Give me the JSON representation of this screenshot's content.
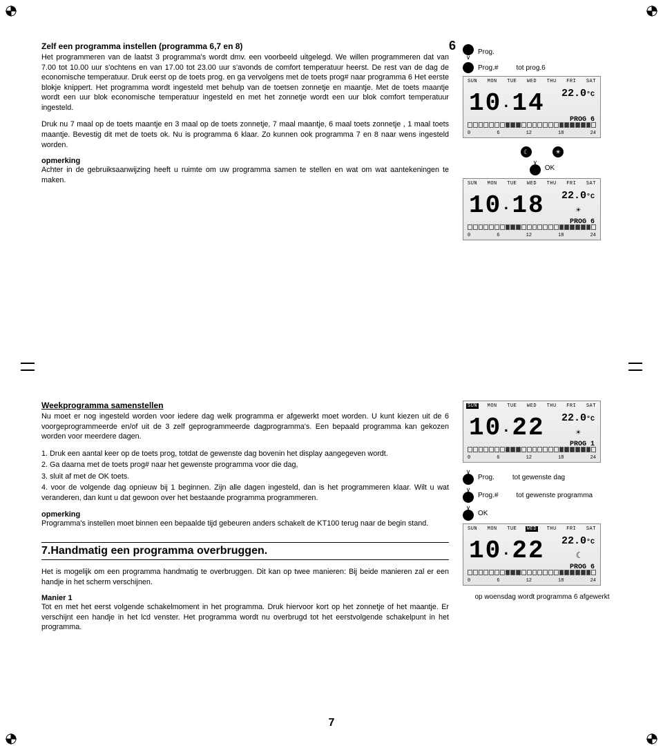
{
  "page_top_num": "6",
  "page_bottom_num": "7",
  "section_top": {
    "title": "Zelf een programma instellen (programma 6,7 en 8)",
    "body": "Het programmeren van de laatst 3 programma's wordt dmv. een voorbeeld uitgelegd. We willen programmeren dat van 7.00 tot 10.00 uur s'ochtens en van 17.00 tot 23.00 uur s'avonds de comfort temperatuur heerst. De rest van de dag de economische temperatuur. Druk eerst op de toets prog. en ga vervolgens met de toets prog# naar programma 6 Het eerste blokje knippert.\nHet programma wordt ingesteld met behulp van de toetsen zonnetje en maantje. Met de toets maantje wordt een uur blok economische temperatuur ingesteld en met het zonnetje wordt een uur blok comfort temperatuur ingesteld.",
    "body2": "Druk nu 7 maal op de toets maantje en 3 maal op de toets zonnetje, 7 maal maantje, 6 maal toets zonnetje , 1 maal toets maantje. Bevestig dit met de toets ok. Nu is programma 6 klaar. Zo kunnen ook programma 7 en 8 naar wens ingesteld worden.",
    "note_title": "opmerking",
    "note_body": "Achter in de gebruiksaanwijzing heeft u ruimte om uw programma samen te stellen en wat om wat aantekeningen te maken."
  },
  "right_top": {
    "btn1_label": "Prog.",
    "btn2_label": "Prog.#",
    "btn2_extra": "tot prog.6",
    "moon": "☾",
    "sun": "☀",
    "ok_label": "OK"
  },
  "section_bottom": {
    "title": "Weekprogramma samenstellen",
    "body": "Nu moet er nog ingesteld worden voor iedere dag welk programma er afgewerkt moet worden. U kunt kiezen uit de 6 voorgeprogrammeerde en/of uit de 3 zelf geprogrammeerde dagprogramma's. Een bepaald programma kan gekozen worden voor meerdere dagen.",
    "li1": "1. Druk een aantal keer op de toets prog, totdat de gewenste dag bovenin het display aangegeven wordt.",
    "li2": "2. Ga daarna met de toets prog# naar het gewenste programma voor die dag,",
    "li3": "3. sluit af met de OK toets.",
    "li4": "4. voor de volgende dag opnieuw bij 1 beginnen.\n Zijn alle dagen ingesteld, dan is het programmeren klaar. Wilt u wat veranderen, dan kunt u dat gewoon over het bestaande programma programmeren.",
    "note_title": "opmerking",
    "note_body": "Programma's instellen moet binnen een bepaalde tijd gebeuren anders schakelt de KT100 terug naar de begin stand.",
    "heading7": "7.Handmatig een programma overbruggen.",
    "body7": "Het is mogelijk om een programma handmatig te overbruggen. Dit kan op twee manieren: Bij beide manieren zal er een handje in het scherm verschijnen.",
    "m1_title": "Manier 1",
    "m1_body": "Tot en met het eerst volgende schakelmoment in het programma. Druk hiervoor kort op het zonnetje of het maantje. Er verschijnt een handje in het lcd venster. Het programma wordt nu overbrugd tot het eerstvolgende schakelpunt in het programma."
  },
  "right_bottom": {
    "prog_label": "Prog.",
    "prog_extra": "tot gewenste dag",
    "proghash_label": "Prog.#",
    "proghash_extra": "tot gewenste programma",
    "ok_label": "OK",
    "caption": "op woensdag wordt programma 6 afgewerkt"
  },
  "lcd_common": {
    "days": [
      "SUN",
      "MON",
      "TUE",
      "WED",
      "THU",
      "FRI",
      "SAT"
    ],
    "temp": "22.0",
    "unit": "°C",
    "scale": [
      "0",
      "6",
      "12",
      "18",
      "24"
    ],
    "prog_label": "PROG"
  },
  "lcd1": {
    "time_h": "10",
    "time_m": "14",
    "prognum": "6",
    "mode": ""
  },
  "lcd2": {
    "time_h": "10",
    "time_m": "18",
    "prognum": "6",
    "mode": "☀"
  },
  "lcd3": {
    "time_h": "10",
    "time_m": "22",
    "prognum": "1",
    "mode": "☀",
    "active_day": 0
  },
  "lcd4": {
    "time_h": "10",
    "time_m": "22",
    "prognum": "6",
    "mode": "☾",
    "active_day": 3
  }
}
